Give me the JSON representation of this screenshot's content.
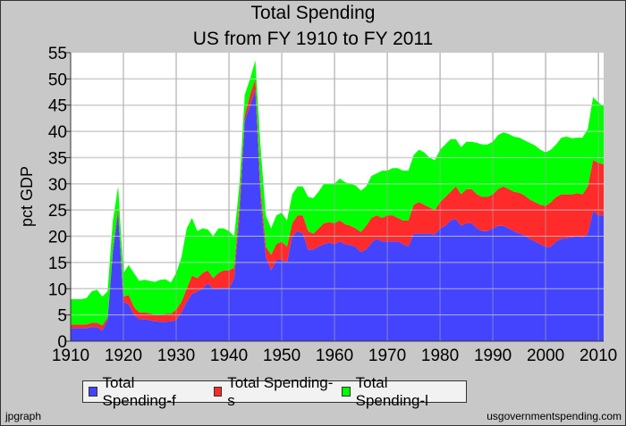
{
  "chart_data": {
    "type": "area",
    "stacked": true,
    "title": "Total Spending",
    "subtitle": "US from FY 1910 to FY 2011",
    "xlabel": "",
    "ylabel": "pct GDP",
    "xlim": [
      1910,
      2011
    ],
    "ylim": [
      0,
      55
    ],
    "xticks": [
      1910,
      1920,
      1930,
      1940,
      1950,
      1960,
      1970,
      1980,
      1990,
      2000,
      2010
    ],
    "yticks": [
      0,
      5,
      10,
      15,
      20,
      25,
      30,
      35,
      40,
      45,
      50,
      55
    ],
    "grid": true,
    "legend_position": "bottom",
    "x_start": 1910,
    "series": [
      {
        "name": "Total Spending-f",
        "color": "#4444ff",
        "values": [
          2.5,
          2.5,
          2.5,
          2.5,
          2.7,
          2.7,
          2,
          4,
          17,
          24.5,
          7.5,
          7,
          5,
          4.2,
          4.2,
          4,
          3.8,
          3.7,
          3.7,
          3.8,
          4,
          5.5,
          7.5,
          9,
          9.5,
          10,
          11,
          10,
          10,
          10.2,
          10,
          12,
          24,
          42,
          45,
          48,
          27,
          16,
          13.5,
          15.5,
          15.5,
          15,
          20,
          21,
          20.5,
          17.5,
          17.5,
          18,
          18.5,
          18.8,
          18.5,
          19,
          18.5,
          18.3,
          18,
          17,
          17.5,
          18.8,
          19.5,
          19,
          19,
          19,
          19,
          18.5,
          18,
          20.5,
          20.5,
          20.5,
          20.5,
          20.3,
          21.5,
          22,
          23,
          23.3,
          22,
          22.5,
          22.5,
          21.5,
          21,
          21,
          21.5,
          22,
          22,
          21.5,
          21,
          20.5,
          20.2,
          19.5,
          19,
          18.5,
          18,
          18,
          19,
          19.5,
          19.7,
          19.8,
          20,
          19.8,
          20.5,
          24.8,
          24,
          24
        ]
      },
      {
        "name": "Total Spending-s",
        "color": "#ff2a2a",
        "values": [
          0.7,
          0.7,
          0.7,
          0.7,
          0.8,
          0.8,
          1,
          0.5,
          0.5,
          1,
          1,
          1.8,
          1.5,
          1.3,
          1.3,
          1.3,
          1.2,
          1.3,
          1.5,
          1.4,
          2,
          2,
          2.5,
          3.5,
          2.5,
          3,
          2.5,
          2,
          3,
          3.3,
          3.5,
          2,
          2,
          1,
          2,
          2,
          2,
          2,
          3,
          3,
          3.5,
          3,
          2.5,
          3,
          3.5,
          3.5,
          3,
          3.5,
          4,
          3.9,
          4,
          4,
          3.8,
          3.7,
          3.5,
          3.8,
          4.5,
          4.7,
          4.5,
          4.5,
          5,
          5,
          4.5,
          4.5,
          5,
          5.5,
          6,
          5.5,
          5,
          4.7,
          5,
          5.5,
          5.5,
          6.2,
          6,
          6.5,
          6.5,
          6.5,
          6.5,
          6.5,
          6.5,
          7,
          7.5,
          7.5,
          7.5,
          7.8,
          7.6,
          7.5,
          7.5,
          7.5,
          7.8,
          8.5,
          8.5,
          8.5,
          8.3,
          8.2,
          8.2,
          8.2,
          9,
          9.7,
          10,
          9.7
        ]
      },
      {
        "name": "Total Spending-l",
        "color": "#00ff00",
        "values": [
          4.8,
          4.8,
          4.8,
          5,
          6,
          6.3,
          5.5,
          5,
          5.5,
          4,
          4.5,
          5.7,
          6.5,
          6,
          6.2,
          6.2,
          6.3,
          6.7,
          6.6,
          6,
          7,
          8.5,
          11.5,
          11,
          9,
          8.5,
          7.8,
          8,
          8.5,
          8,
          7.5,
          6,
          4,
          4,
          3,
          3.5,
          8,
          6,
          5,
          5.5,
          5.5,
          5,
          5.5,
          5.5,
          5.5,
          6.5,
          6.8,
          7,
          7.5,
          7.3,
          7.5,
          8,
          8,
          8,
          8.2,
          7.9,
          7.5,
          8,
          8,
          9,
          8.5,
          9,
          9.5,
          9.5,
          9.5,
          9.5,
          10,
          10,
          9.5,
          9.5,
          10,
          10,
          10,
          9,
          9,
          9,
          9,
          9.8,
          10,
          10,
          10,
          10.3,
          10.3,
          10.5,
          10.5,
          10.5,
          10.5,
          10.8,
          10.8,
          10.5,
          10.2,
          10,
          10,
          10.8,
          11,
          10.7,
          10.6,
          10.8,
          11,
          12,
          11.5,
          11.1
        ]
      }
    ]
  },
  "footer": {
    "left": "jpgraph",
    "right": "usgovernmentspending.com"
  }
}
